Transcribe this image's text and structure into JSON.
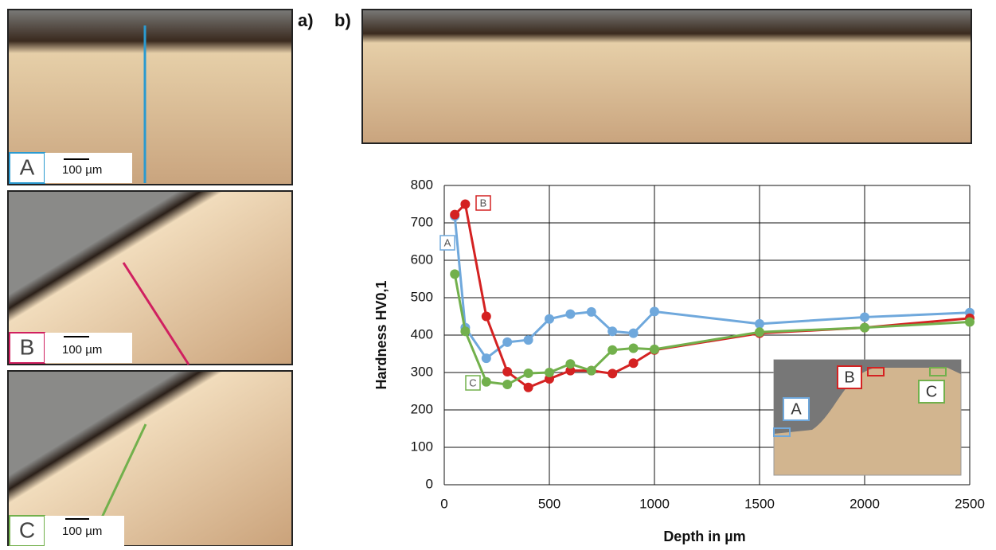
{
  "panels": {
    "a_label": "a)",
    "b_label": "b)",
    "micrographs": [
      "A",
      "B",
      "C"
    ],
    "scale_bar": "100 µm",
    "inset_labels": [
      "A",
      "B",
      "C"
    ]
  },
  "chart_data": {
    "type": "line",
    "x_label": "Depth in µm",
    "y_label": "Hardness HV0,1",
    "x": [
      50,
      100,
      200,
      300,
      400,
      500,
      600,
      700,
      800,
      900,
      1000,
      1500,
      2000,
      2500
    ],
    "series": [
      {
        "name": "A",
        "color": "#6fa8dc",
        "values": [
          718,
          420,
          338,
          381,
          387,
          443,
          456,
          462,
          410,
          405,
          463,
          430,
          448,
          460
        ]
      },
      {
        "name": "B",
        "color": "#d42222",
        "values": [
          722,
          750,
          450,
          302,
          260,
          283,
          305,
          305,
          297,
          325,
          360,
          405,
          420,
          445
        ]
      },
      {
        "name": "C",
        "color": "#72b04c",
        "values": [
          563,
          410,
          275,
          268,
          298,
          300,
          323,
          305,
          360,
          365,
          362,
          408,
          420,
          435
        ]
      }
    ],
    "xlim": [
      0,
      2500
    ],
    "xticks": [
      0,
      500,
      1000,
      1500,
      2000,
      2500
    ],
    "ylim": [
      0,
      800
    ],
    "yticks": [
      0,
      100,
      200,
      300,
      400,
      500,
      600,
      700,
      800
    ],
    "grid": true
  }
}
